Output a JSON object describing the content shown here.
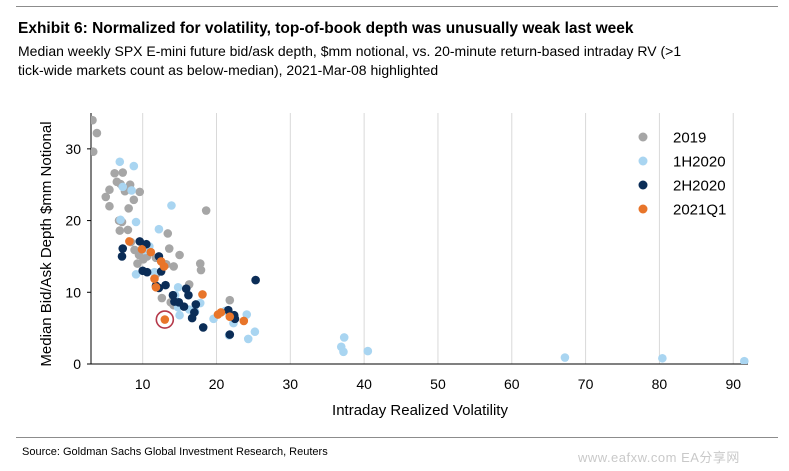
{
  "exhibit": {
    "title": "Exhibit 6: Normalized for volatility, top-of-book depth was unusually weak last week",
    "subtitle_lines": [
      "Median weekly SPX E-mini future bid/ask depth, $mm notional, vs. 20-minute return-based intraday RV (>1",
      "tick-wide markets count as below-median), 2021-Mar-08 highlighted"
    ],
    "source": "Source: Goldman Sachs Global Investment Research, Reuters",
    "watermark": "www.eafxw.com  EA分享网"
  },
  "chart_data": {
    "type": "scatter",
    "xlabel": "Intraday Realized Volatility",
    "ylabel": "Median Bid/Ask Depth $mm Notional",
    "xlim": [
      3,
      92
    ],
    "ylim": [
      0,
      35
    ],
    "xticks": [
      10,
      20,
      30,
      40,
      50,
      60,
      70,
      80,
      90
    ],
    "yticks": [
      0,
      10,
      20,
      30
    ],
    "grid": "vertical",
    "legend_position": "top-right",
    "highlight": {
      "x": 13.0,
      "y": 6.2,
      "color": "#b5394a"
    },
    "series": [
      {
        "name": "2019",
        "color": "#a6a6a6",
        "points": [
          [
            3.2,
            34.0
          ],
          [
            3.8,
            32.2
          ],
          [
            3.3,
            29.6
          ],
          [
            5.0,
            23.3
          ],
          [
            5.5,
            24.3
          ],
          [
            6.2,
            26.6
          ],
          [
            6.5,
            25.4
          ],
          [
            7.0,
            25.1
          ],
          [
            7.3,
            26.7
          ],
          [
            7.6,
            24.1
          ],
          [
            8.3,
            25.0
          ],
          [
            9.6,
            24.0
          ],
          [
            5.5,
            22.0
          ],
          [
            6.8,
            20.0
          ],
          [
            7.2,
            19.8
          ],
          [
            8.1,
            21.7
          ],
          [
            8.0,
            18.7
          ],
          [
            8.8,
            22.9
          ],
          [
            6.9,
            18.6
          ],
          [
            8.4,
            17.0
          ],
          [
            8.9,
            15.9
          ],
          [
            9.5,
            15.2
          ],
          [
            9.3,
            14.0
          ],
          [
            10.1,
            14.6
          ],
          [
            10.6,
            15.0
          ],
          [
            11.8,
            14.8
          ],
          [
            11.8,
            12.5
          ],
          [
            13.4,
            18.2
          ],
          [
            13.6,
            16.1
          ],
          [
            15.0,
            15.2
          ],
          [
            13.2,
            13.9
          ],
          [
            14.2,
            13.6
          ],
          [
            16.3,
            11.1
          ],
          [
            12.6,
            9.2
          ],
          [
            14.2,
            8.2
          ],
          [
            17.8,
            14.0
          ],
          [
            17.9,
            13.1
          ],
          [
            18.6,
            21.4
          ],
          [
            21.8,
            8.9
          ],
          [
            13.8,
            8.6
          ]
        ]
      },
      {
        "name": "1H2020",
        "color": "#a9d5f1",
        "points": [
          [
            6.9,
            28.2
          ],
          [
            8.8,
            27.6
          ],
          [
            7.3,
            24.7
          ],
          [
            8.5,
            24.2
          ],
          [
            7.0,
            20.1
          ],
          [
            13.9,
            22.1
          ],
          [
            9.1,
            19.8
          ],
          [
            12.2,
            18.8
          ],
          [
            10.9,
            16.4
          ],
          [
            10.3,
            15.9
          ],
          [
            9.1,
            12.5
          ],
          [
            11.6,
            12.8
          ],
          [
            14.8,
            10.7
          ],
          [
            14.4,
            9.6
          ],
          [
            14.8,
            7.9
          ],
          [
            15.0,
            6.8
          ],
          [
            16.3,
            7.6
          ],
          [
            17.1,
            7.3
          ],
          [
            17.8,
            8.5
          ],
          [
            19.6,
            6.3
          ],
          [
            21.2,
            7.4
          ],
          [
            21.7,
            4.0
          ],
          [
            22.3,
            5.7
          ],
          [
            24.1,
            6.9
          ],
          [
            24.3,
            3.5
          ],
          [
            25.2,
            4.5
          ],
          [
            36.9,
            2.4
          ],
          [
            37.2,
            1.7
          ],
          [
            37.3,
            3.7
          ],
          [
            40.5,
            1.8
          ],
          [
            67.2,
            0.9
          ],
          [
            80.4,
            0.8
          ],
          [
            91.5,
            0.4
          ]
        ]
      },
      {
        "name": "2H2020",
        "color": "#0b2d57",
        "points": [
          [
            7.3,
            16.1
          ],
          [
            7.2,
            15.0
          ],
          [
            9.6,
            17.1
          ],
          [
            10.5,
            16.7
          ],
          [
            12.2,
            15.0
          ],
          [
            10.0,
            13.0
          ],
          [
            10.6,
            12.8
          ],
          [
            12.5,
            12.9
          ],
          [
            13.1,
            11.0
          ],
          [
            11.8,
            10.9
          ],
          [
            12.2,
            10.6
          ],
          [
            14.1,
            9.6
          ],
          [
            15.9,
            10.5
          ],
          [
            16.2,
            9.6
          ],
          [
            14.3,
            8.7
          ],
          [
            14.9,
            8.6
          ],
          [
            15.6,
            8.0
          ],
          [
            17.0,
            7.2
          ],
          [
            17.2,
            8.3
          ],
          [
            16.7,
            6.4
          ],
          [
            18.2,
            5.1
          ],
          [
            21.6,
            7.5
          ],
          [
            22.4,
            6.8
          ],
          [
            22.5,
            6.3
          ],
          [
            21.8,
            4.1
          ],
          [
            25.3,
            11.7
          ]
        ]
      },
      {
        "name": "2021Q1",
        "color": "#e8752a",
        "points": [
          [
            8.2,
            17.1
          ],
          [
            9.9,
            16.0
          ],
          [
            11.1,
            15.6
          ],
          [
            12.5,
            14.3
          ],
          [
            12.9,
            13.6
          ],
          [
            11.6,
            11.9
          ],
          [
            11.8,
            10.7
          ],
          [
            18.1,
            9.7
          ],
          [
            20.2,
            6.9
          ],
          [
            20.6,
            7.2
          ],
          [
            21.8,
            6.6
          ],
          [
            23.7,
            6.0
          ],
          [
            13.0,
            6.2
          ]
        ]
      }
    ]
  }
}
